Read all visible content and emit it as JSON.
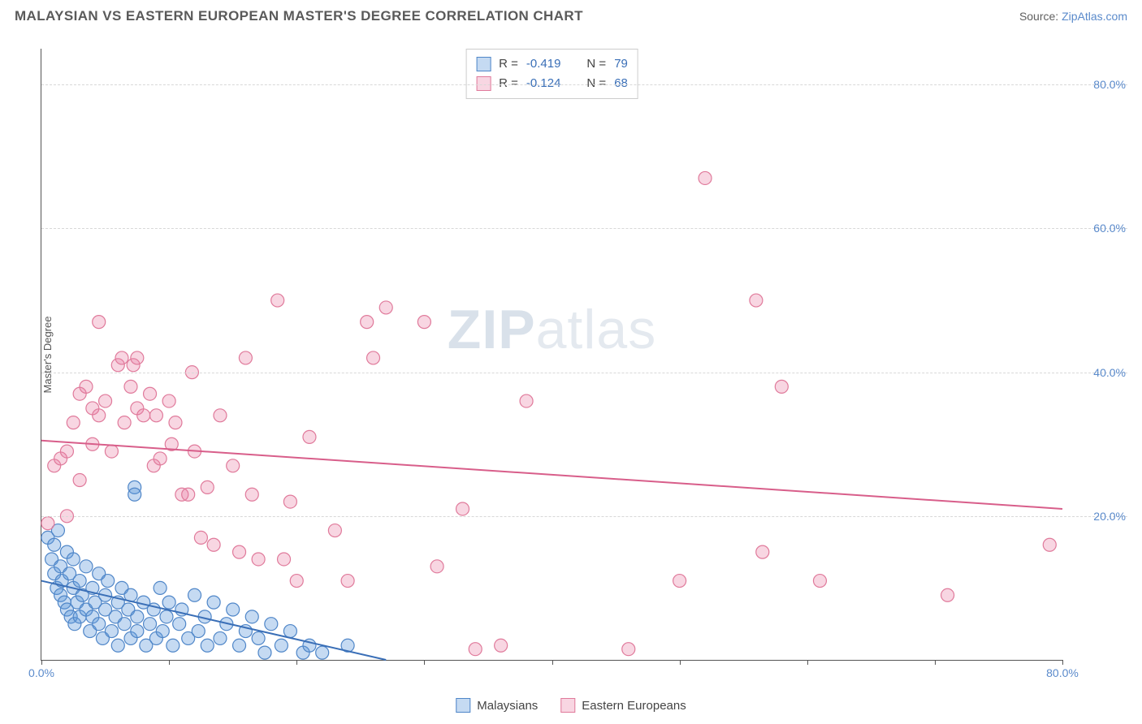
{
  "title": "MALAYSIAN VS EASTERN EUROPEAN MASTER'S DEGREE CORRELATION CHART",
  "source_label": "Source:",
  "source_name": "ZipAtlas.com",
  "watermark_bold": "ZIP",
  "watermark_rest": "atlas",
  "chart": {
    "type": "scatter",
    "ylabel": "Master's Degree",
    "xlim": [
      0,
      80
    ],
    "ylim": [
      0,
      85
    ],
    "xtick_positions": [
      0,
      10,
      20,
      30,
      40,
      50,
      60,
      70,
      80
    ],
    "xtick_labels": {
      "0": "0.0%",
      "80": "80.0%"
    },
    "ytick_positions": [
      20,
      40,
      60,
      80
    ],
    "ytick_labels": [
      "20.0%",
      "40.0%",
      "60.0%",
      "80.0%"
    ],
    "gridline_color": "#d8d8d8",
    "axis_color": "#555555",
    "background_color": "#ffffff",
    "tick_label_color": "#5a8acb",
    "point_radius": 8,
    "series": [
      {
        "name": "Malaysians",
        "color_fill": "rgba(90,149,219,0.35)",
        "color_stroke": "#4f86c8",
        "R": "-0.419",
        "N": "79",
        "trend": {
          "x1": 0,
          "y1": 11,
          "x2": 27,
          "y2": 0,
          "color": "#3a6fb7",
          "width": 2
        },
        "points": [
          [
            0.5,
            17
          ],
          [
            0.8,
            14
          ],
          [
            1,
            16
          ],
          [
            1,
            12
          ],
          [
            1.2,
            10
          ],
          [
            1.3,
            18
          ],
          [
            1.5,
            13
          ],
          [
            1.5,
            9
          ],
          [
            1.6,
            11
          ],
          [
            1.8,
            8
          ],
          [
            2,
            15
          ],
          [
            2,
            7
          ],
          [
            2.2,
            12
          ],
          [
            2.3,
            6
          ],
          [
            2.5,
            10
          ],
          [
            2.5,
            14
          ],
          [
            2.6,
            5
          ],
          [
            2.8,
            8
          ],
          [
            3,
            11
          ],
          [
            3,
            6
          ],
          [
            3.2,
            9
          ],
          [
            3.5,
            7
          ],
          [
            3.5,
            13
          ],
          [
            3.8,
            4
          ],
          [
            4,
            10
          ],
          [
            4,
            6
          ],
          [
            4.2,
            8
          ],
          [
            4.5,
            5
          ],
          [
            4.5,
            12
          ],
          [
            4.8,
            3
          ],
          [
            5,
            9
          ],
          [
            5,
            7
          ],
          [
            5.2,
            11
          ],
          [
            5.5,
            4
          ],
          [
            5.8,
            6
          ],
          [
            6,
            8
          ],
          [
            6,
            2
          ],
          [
            6.3,
            10
          ],
          [
            6.5,
            5
          ],
          [
            6.8,
            7
          ],
          [
            7,
            3
          ],
          [
            7,
            9
          ],
          [
            7.3,
            24
          ],
          [
            7.3,
            23
          ],
          [
            7.5,
            6
          ],
          [
            7.5,
            4
          ],
          [
            8,
            8
          ],
          [
            8.2,
            2
          ],
          [
            8.5,
            5
          ],
          [
            8.8,
            7
          ],
          [
            9,
            3
          ],
          [
            9.3,
            10
          ],
          [
            9.5,
            4
          ],
          [
            9.8,
            6
          ],
          [
            10,
            8
          ],
          [
            10.3,
            2
          ],
          [
            10.8,
            5
          ],
          [
            11,
            7
          ],
          [
            11.5,
            3
          ],
          [
            12,
            9
          ],
          [
            12.3,
            4
          ],
          [
            12.8,
            6
          ],
          [
            13,
            2
          ],
          [
            13.5,
            8
          ],
          [
            14,
            3
          ],
          [
            14.5,
            5
          ],
          [
            15,
            7
          ],
          [
            15.5,
            2
          ],
          [
            16,
            4
          ],
          [
            16.5,
            6
          ],
          [
            17,
            3
          ],
          [
            17.5,
            1
          ],
          [
            18,
            5
          ],
          [
            18.8,
            2
          ],
          [
            19.5,
            4
          ],
          [
            20.5,
            1
          ],
          [
            21,
            2
          ],
          [
            22,
            1
          ],
          [
            24,
            2
          ]
        ]
      },
      {
        "name": "Eastern Europeans",
        "color_fill": "rgba(232,120,158,0.30)",
        "color_stroke": "#e07a9b",
        "R": "-0.124",
        "N": "68",
        "trend": {
          "x1": 0,
          "y1": 30.5,
          "x2": 80,
          "y2": 21,
          "color": "#d85e8a",
          "width": 2
        },
        "points": [
          [
            0.5,
            19
          ],
          [
            1,
            27
          ],
          [
            1.5,
            28
          ],
          [
            2,
            29
          ],
          [
            2,
            20
          ],
          [
            2.5,
            33
          ],
          [
            3,
            37
          ],
          [
            3,
            25
          ],
          [
            3.5,
            38
          ],
          [
            4,
            35
          ],
          [
            4,
            30
          ],
          [
            4.5,
            47
          ],
          [
            4.5,
            34
          ],
          [
            5,
            36
          ],
          [
            5.5,
            29
          ],
          [
            6,
            41
          ],
          [
            6.3,
            42
          ],
          [
            6.5,
            33
          ],
          [
            7,
            38
          ],
          [
            7.2,
            41
          ],
          [
            7.5,
            35
          ],
          [
            7.5,
            42
          ],
          [
            8,
            34
          ],
          [
            8.5,
            37
          ],
          [
            8.8,
            27
          ],
          [
            9,
            34
          ],
          [
            9.3,
            28
          ],
          [
            10,
            36
          ],
          [
            10.2,
            30
          ],
          [
            10.5,
            33
          ],
          [
            11,
            23
          ],
          [
            11.5,
            23
          ],
          [
            11.8,
            40
          ],
          [
            12,
            29
          ],
          [
            12.5,
            17
          ],
          [
            13,
            24
          ],
          [
            13.5,
            16
          ],
          [
            14,
            34
          ],
          [
            15,
            27
          ],
          [
            15.5,
            15
          ],
          [
            16,
            42
          ],
          [
            16.5,
            23
          ],
          [
            17,
            14
          ],
          [
            18.5,
            50
          ],
          [
            19,
            14
          ],
          [
            19.5,
            22
          ],
          [
            20,
            11
          ],
          [
            21,
            31
          ],
          [
            23,
            18
          ],
          [
            24,
            11
          ],
          [
            25.5,
            47
          ],
          [
            26,
            42
          ],
          [
            27,
            49
          ],
          [
            30,
            47
          ],
          [
            31,
            13
          ],
          [
            33,
            21
          ],
          [
            34,
            1.5
          ],
          [
            36,
            2
          ],
          [
            38,
            36
          ],
          [
            46,
            1.5
          ],
          [
            50,
            11
          ],
          [
            52,
            67
          ],
          [
            56,
            50
          ],
          [
            56.5,
            15
          ],
          [
            58,
            38
          ],
          [
            61,
            11
          ],
          [
            71,
            9
          ],
          [
            79,
            16
          ]
        ]
      }
    ]
  },
  "corr_box": {
    "r_label": "R =",
    "n_label": "N ="
  },
  "bottom_legend": [
    {
      "label": "Malaysians"
    },
    {
      "label": "Eastern Europeans"
    }
  ]
}
